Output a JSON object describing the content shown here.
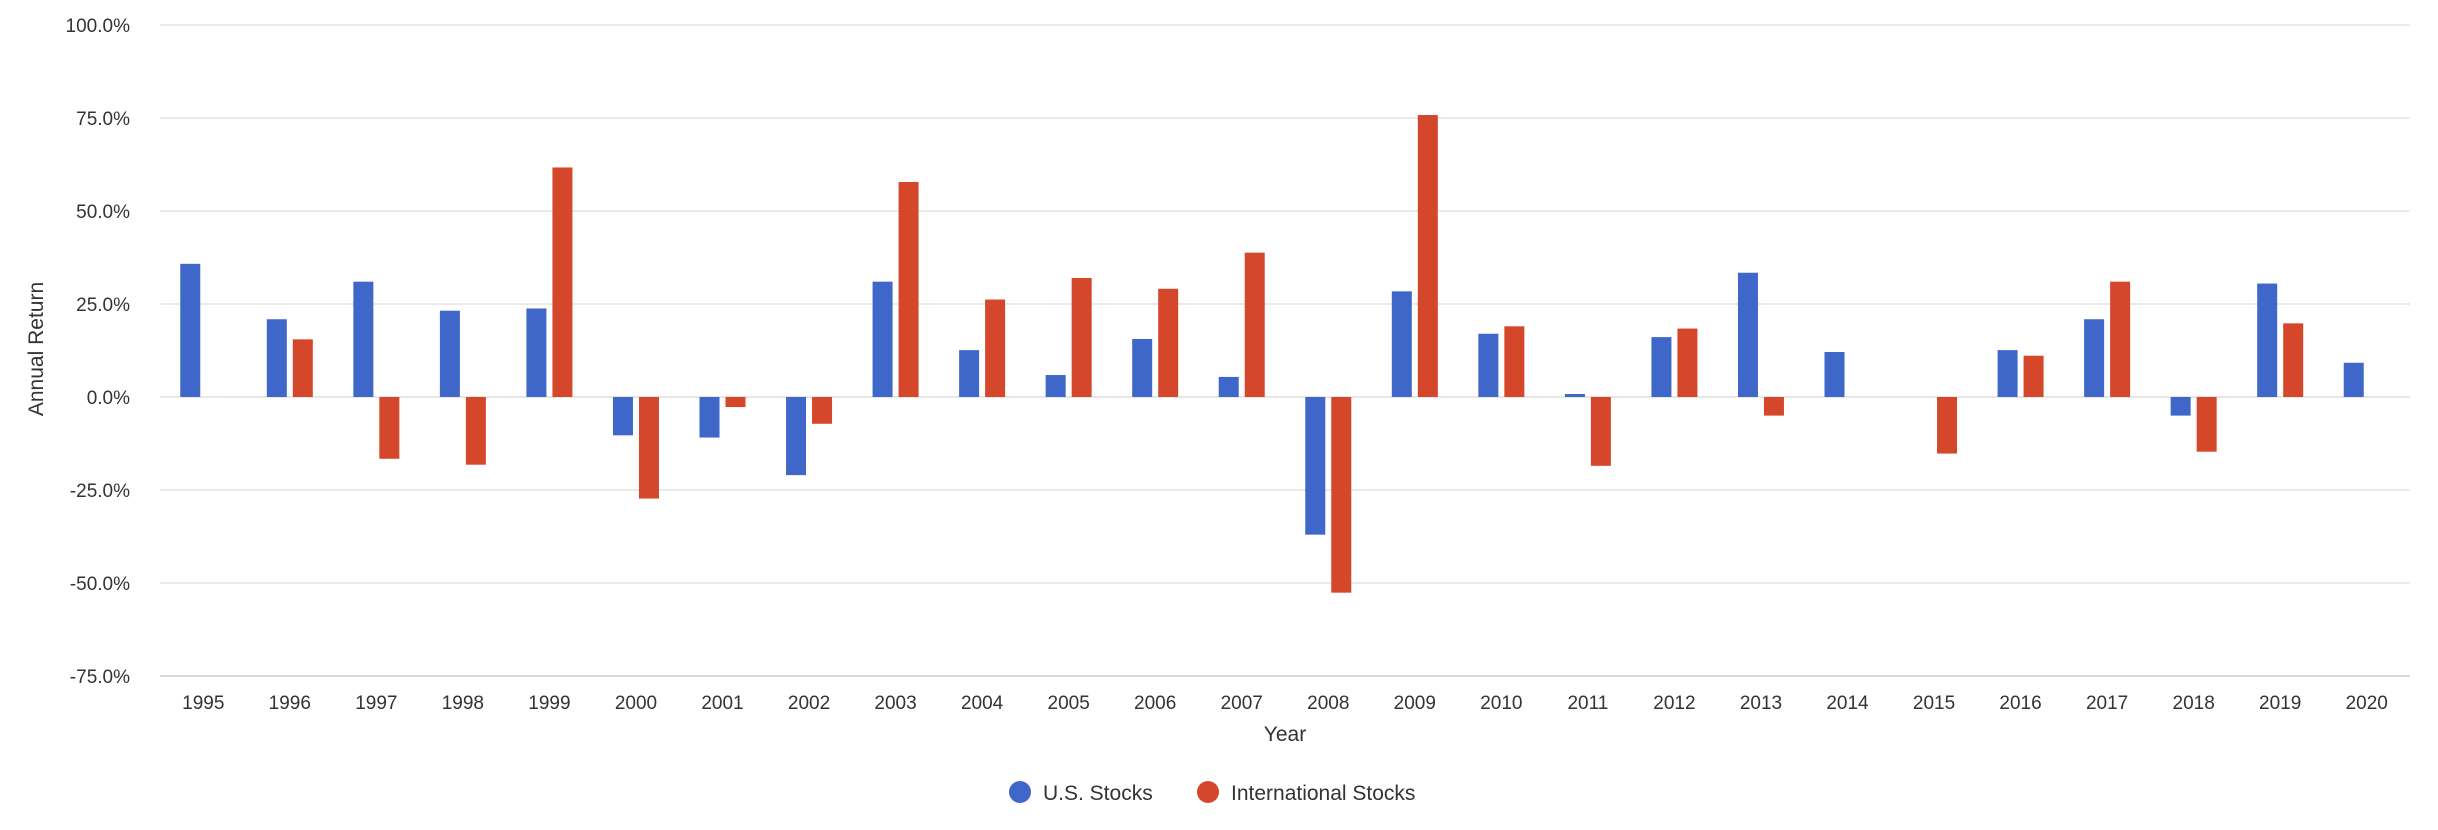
{
  "chart_data": {
    "type": "bar",
    "xlabel": "Year",
    "ylabel": "Annual Return",
    "ylim": [
      -75,
      100
    ],
    "yticks": [
      100,
      75,
      50,
      25,
      0,
      -25,
      -50,
      -75
    ],
    "ytick_labels": [
      "100.0%",
      "75.0%",
      "50.0%",
      "25.0%",
      "0.0%",
      "-25.0%",
      "-50.0%",
      "-75.0%"
    ],
    "grid": true,
    "legend_position": "bottom-center",
    "categories": [
      "1995",
      "1996",
      "1997",
      "1998",
      "1999",
      "2000",
      "2001",
      "2002",
      "2003",
      "2004",
      "2005",
      "2006",
      "2007",
      "2008",
      "2009",
      "2010",
      "2011",
      "2012",
      "2013",
      "2014",
      "2015",
      "2016",
      "2017",
      "2018",
      "2019",
      "2020"
    ],
    "series": [
      {
        "name": "U.S. Stocks",
        "color": "#3e67c9",
        "values": [
          35.8,
          20.9,
          31.0,
          23.2,
          23.8,
          -10.3,
          -10.9,
          -21.0,
          31.0,
          12.6,
          5.9,
          15.6,
          5.4,
          -37.0,
          28.4,
          17.0,
          0.8,
          16.1,
          33.4,
          12.1,
          null,
          12.6,
          20.9,
          -5.0,
          30.5,
          9.2
        ]
      },
      {
        "name": "International Stocks",
        "color": "#d5472a",
        "values": [
          null,
          15.5,
          -16.6,
          -18.2,
          61.7,
          -27.3,
          -2.7,
          -7.2,
          57.8,
          26.2,
          32.0,
          29.1,
          38.8,
          -52.6,
          75.8,
          19.0,
          -18.5,
          18.4,
          -5.0,
          null,
          -15.2,
          11.1,
          31.0,
          -14.7,
          19.8,
          null
        ]
      }
    ]
  }
}
